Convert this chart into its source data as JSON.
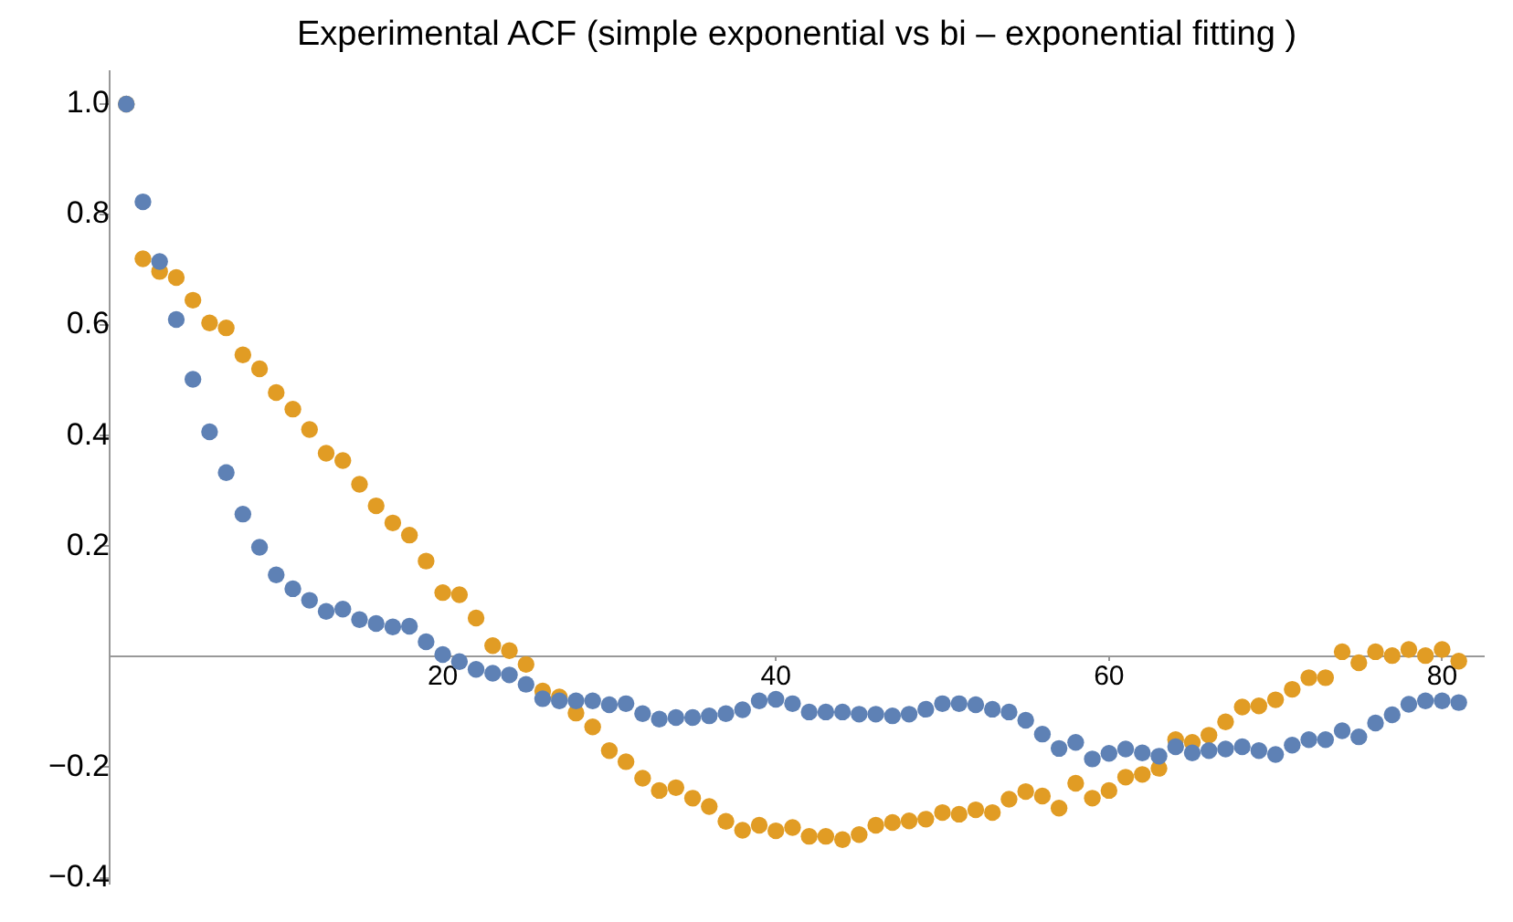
{
  "chart_data": {
    "type": "scatter",
    "title": "Experimental ACF (simple exponential vs bi – exponential fitting )",
    "x": [
      1,
      2,
      3,
      4,
      5,
      6,
      7,
      8,
      9,
      10,
      11,
      12,
      13,
      14,
      15,
      16,
      17,
      18,
      19,
      20,
      21,
      22,
      23,
      24,
      25,
      26,
      27,
      28,
      29,
      30,
      31,
      32,
      33,
      34,
      35,
      36,
      37,
      38,
      39,
      40,
      41,
      42,
      43,
      44,
      45,
      46,
      47,
      48,
      49,
      50,
      51,
      52,
      53,
      54,
      55,
      56,
      57,
      58,
      59,
      60,
      61,
      62,
      63,
      64,
      65,
      66,
      67,
      68,
      69,
      70,
      71,
      72,
      73,
      74,
      75,
      76,
      77,
      78,
      79,
      80,
      81
    ],
    "series": [
      {
        "color": "#5e81b5",
        "values": [
          1.0,
          0.823,
          0.715,
          0.61,
          0.502,
          0.407,
          0.333,
          0.258,
          0.198,
          0.148,
          0.123,
          0.102,
          0.082,
          0.086,
          0.067,
          0.06,
          0.054,
          0.055,
          0.027,
          0.004,
          -0.009,
          -0.023,
          -0.03,
          -0.033,
          -0.05,
          -0.076,
          -0.08,
          -0.08,
          -0.08,
          -0.087,
          -0.085,
          -0.103,
          -0.113,
          -0.11,
          -0.11,
          -0.107,
          -0.103,
          -0.096,
          -0.08,
          -0.077,
          -0.085,
          -0.1,
          -0.1,
          -0.1,
          -0.104,
          -0.104,
          -0.107,
          -0.104,
          -0.095,
          -0.085,
          -0.085,
          -0.087,
          -0.095,
          -0.1,
          -0.115,
          -0.14,
          -0.166,
          -0.155,
          -0.185,
          -0.175,
          -0.167,
          -0.174,
          -0.18,
          -0.163,
          -0.174,
          -0.17,
          -0.167,
          -0.163,
          -0.17,
          -0.177,
          -0.16,
          -0.15,
          -0.15,
          -0.134,
          -0.145,
          -0.12,
          -0.105,
          -0.086,
          -0.08,
          -0.08,
          -0.083
        ]
      },
      {
        "color": "#e19c24",
        "values": [
          1.0,
          0.72,
          0.697,
          0.686,
          0.645,
          0.604,
          0.595,
          0.546,
          0.521,
          0.478,
          0.448,
          0.411,
          0.368,
          0.355,
          0.312,
          0.273,
          0.242,
          0.22,
          0.173,
          0.116,
          0.112,
          0.07,
          0.02,
          0.011,
          -0.014,
          -0.062,
          -0.073,
          -0.102,
          -0.127,
          -0.17,
          -0.19,
          -0.22,
          -0.242,
          -0.237,
          -0.256,
          -0.271,
          -0.298,
          -0.314,
          -0.305,
          -0.315,
          -0.309,
          -0.325,
          -0.325,
          -0.331,
          -0.322,
          -0.305,
          -0.3,
          -0.297,
          -0.294,
          -0.282,
          -0.285,
          -0.277,
          -0.282,
          -0.258,
          -0.244,
          -0.252,
          -0.274,
          -0.229,
          -0.256,
          -0.242,
          -0.218,
          -0.213,
          -0.202,
          -0.15,
          -0.155,
          -0.142,
          -0.118,
          -0.091,
          -0.089,
          -0.078,
          -0.059,
          -0.038,
          -0.038,
          0.009,
          -0.011,
          0.009,
          0.002,
          0.013,
          0.002,
          0.013,
          -0.008
        ]
      }
    ],
    "xlim": [
      0,
      82.5
    ],
    "xticks": [
      20,
      40,
      60,
      80
    ],
    "ylim": [
      -0.41,
      1.06
    ],
    "yticks": [
      {
        "value": -0.4,
        "label": "−0.4"
      },
      {
        "value": -0.2,
        "label": "−0.2"
      },
      {
        "value": 0.2,
        "label": "0.2"
      },
      {
        "value": 0.4,
        "label": "0.4"
      },
      {
        "value": 0.6,
        "label": "0.6"
      },
      {
        "value": 0.8,
        "label": "0.8"
      },
      {
        "value": 1.0,
        "label": "1.0"
      }
    ],
    "grid": false,
    "legend": false,
    "marker": "circle"
  }
}
